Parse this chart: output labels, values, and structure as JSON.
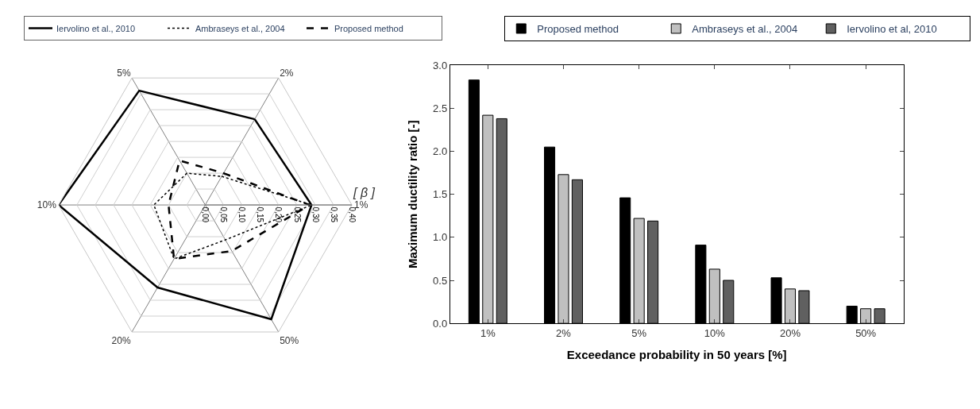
{
  "chart_data": [
    {
      "type": "radar",
      "categories": [
        "2%",
        "1%",
        "50%",
        "20%",
        "10%",
        "5%"
      ],
      "series": [
        {
          "name": "Iervolino et al., 2010",
          "color": "#000000",
          "line_style": "solid",
          "values": [
            0.27,
            0.29,
            0.36,
            0.26,
            0.4,
            0.36
          ]
        },
        {
          "name": "Ambraseys et al., 2004",
          "color": "#000000",
          "line_style": "dotted",
          "values": [
            0.09,
            0.29,
            0.11,
            0.17,
            0.14,
            0.1
          ]
        },
        {
          "name": "Proposed method",
          "color": "#000000",
          "line_style": "dashed",
          "values": [
            0.1,
            0.285,
            0.145,
            0.17,
            0.1,
            0.14
          ]
        }
      ],
      "ylim": [
        0,
        0.4
      ],
      "yticks": [
        {
          "value": 0,
          "label": "0,00"
        },
        {
          "value": 0.05,
          "label": "0,05"
        },
        {
          "value": 0.1,
          "label": "0,10"
        },
        {
          "value": 0.15,
          "label": "0,15"
        },
        {
          "value": 0.2,
          "label": "0,20"
        },
        {
          "value": 0.25,
          "label": "0,25"
        },
        {
          "value": 0.3,
          "label": "0,30"
        },
        {
          "value": 0.35,
          "label": "0,35"
        },
        {
          "value": 0.4,
          "label": "0,40"
        }
      ],
      "ylabel": "[ β ]",
      "grid": true,
      "legend": "top",
      "marker": "none"
    },
    {
      "type": "bar",
      "categories": [
        "1%",
        "2%",
        "5%",
        "10%",
        "20%",
        "50%"
      ],
      "series": [
        {
          "name": "Proposed method",
          "color": "#000000",
          "values": [
            2.83,
            2.05,
            1.46,
            0.91,
            0.53,
            0.2
          ]
        },
        {
          "name": "Ambraseys et al., 2004",
          "color": "#c0c0c0",
          "values": [
            2.42,
            1.73,
            1.22,
            0.63,
            0.4,
            0.17
          ]
        },
        {
          "name": "Iervolino et al, 2010",
          "color": "#606060",
          "values": [
            2.38,
            1.67,
            1.19,
            0.5,
            0.38,
            0.17
          ]
        }
      ],
      "ylim": [
        0,
        3
      ],
      "yticks": [
        {
          "value": 0,
          "label": "0.0"
        },
        {
          "value": 0.5,
          "label": "0.5"
        },
        {
          "value": 1,
          "label": "1.0"
        },
        {
          "value": 1.5,
          "label": "1.5"
        },
        {
          "value": 2,
          "label": "2.0"
        },
        {
          "value": 2.5,
          "label": "2.5"
        },
        {
          "value": 3,
          "label": "3.0"
        }
      ],
      "xlabel": "Exceedance probability in 50 years [%]",
      "ylabel": "Maximum ductility ratio [-]",
      "grid": false,
      "legend": "top"
    }
  ]
}
